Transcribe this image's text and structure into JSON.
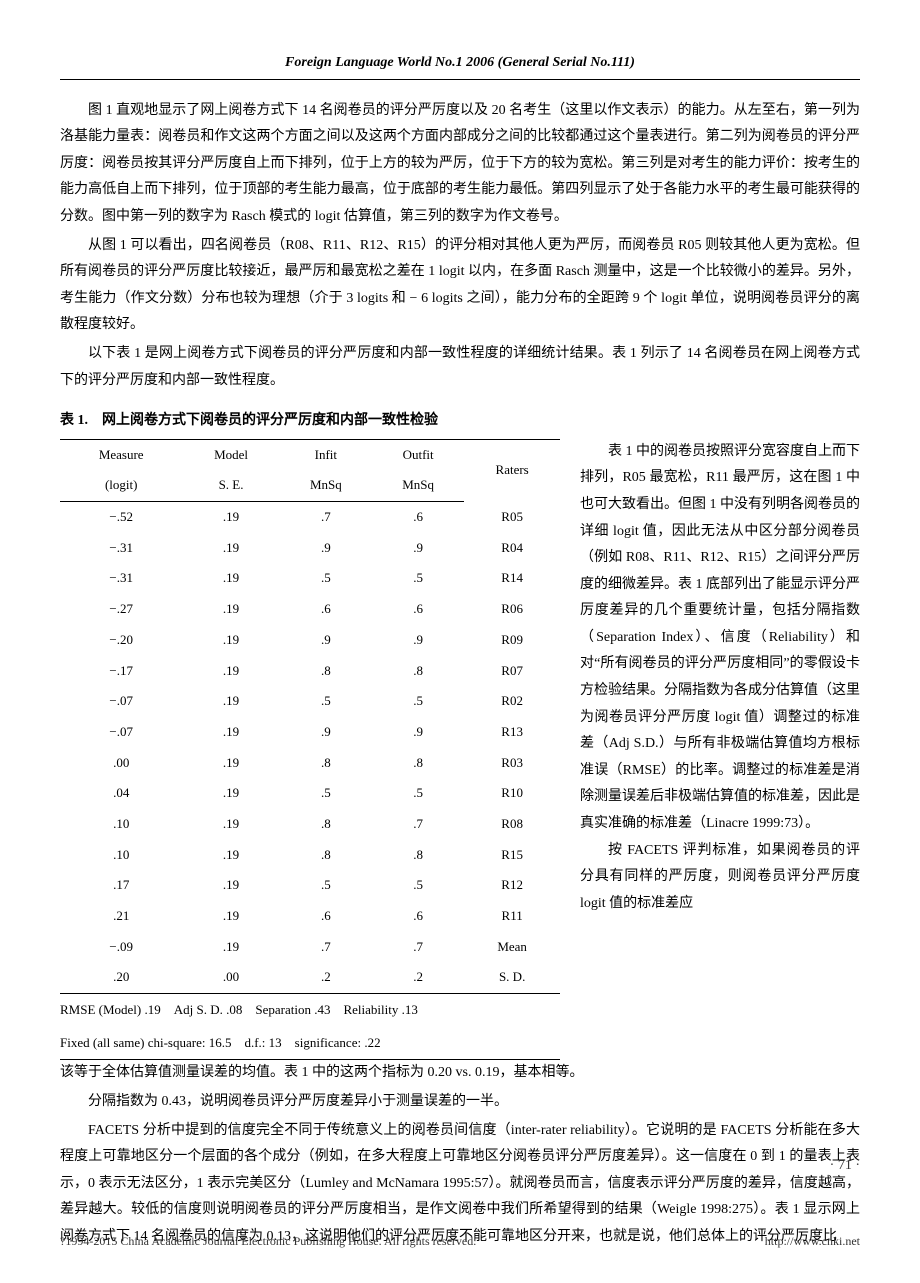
{
  "journal_header": "Foreign Language World No.1 2006 (General Serial No.111)",
  "body": {
    "p1": "图 1 直观地显示了网上阅卷方式下 14 名阅卷员的评分严厉度以及 20 名考生（这里以作文表示）的能力。从左至右，第一列为洛基能力量表：阅卷员和作文这两个方面之间以及这两个方面内部成分之间的比较都通过这个量表进行。第二列为阅卷员的评分严厉度：阅卷员按其评分严厉度自上而下排列，位于上方的较为严厉，位于下方的较为宽松。第三列是对考生的能力评价：按考生的能力高低自上而下排列，位于顶部的考生能力最高，位于底部的考生能力最低。第四列显示了处于各能力水平的考生最可能获得的分数。图中第一列的数字为 Rasch 模式的 logit 估算值，第三列的数字为作文卷号。",
    "p2": "从图 1 可以看出，四名阅卷员（R08、R11、R12、R15）的评分相对其他人更为严厉，而阅卷员 R05 则较其他人更为宽松。但所有阅卷员的评分严厉度比较接近，最严厉和最宽松之差在 1 logit 以内，在多面 Rasch 测量中，这是一个比较微小的差异。另外，考生能力（作文分数）分布也较为理想（介于 3 logits 和 − 6 logits 之间），能力分布的全距跨 9 个 logit 单位，说明阅卷员评分的离散程度较好。",
    "p3": "以下表 1 是网上阅卷方式下阅卷员的评分严厉度和内部一致性程度的详细统计结果。表 1 列示了 14 名阅卷员在网上阅卷方式下的评分严厉度和内部一致性程度。",
    "p4_right": "表 1 中的阅卷员按照评分宽容度自上而下排列，R05 最宽松，R11 最严厉，这在图 1 中也可大致看出。但图 1 中没有列明各阅卷员的详细 logit 值，因此无法从中区分部分阅卷员（例如 R08、R11、R12、R15）之间评分严厉度的细微差异。表 1 底部列出了能显示评分严厉度差异的几个重要统计量，包括分隔指数（Separation Index）、信度（Reliability）和对“所有阅卷员的评分严厉度相同”的零假设卡方检验结果。分隔指数为各成分估算值（这里为阅卷员评分严厉度 logit 值）调整过的标准差（Adj S.D.）与所有非极端估算值均方根标准误（RMSE）的比率。调整过的标准差是消除测量误差后非极端估算值的标准差，因此是真实准确的标准差（Linacre 1999:73）。",
    "p5_right": "按 FACETS 评判标准，如果阅卷员的评分具有同样的严厉度，则阅卷员评分严厉度 logit 值的标准差应",
    "p6": "该等于全体估算值测量误差的均值。表 1 中的这两个指标为 0.20 vs. 0.19，基本相等。",
    "p7": "分隔指数为 0.43，说明阅卷员评分严厉度差异小于测量误差的一半。",
    "p8": "FACETS 分析中提到的信度完全不同于传统意义上的阅卷员间信度（inter-rater reliability）。它说明的是 FACETS 分析能在多大程度上可靠地区分一个层面的各个成分（例如，在多大程度上可靠地区分阅卷员评分严厉度差异）。这一信度在 0 到 1 的量表上表示，0 表示无法区分，1 表示完美区分（Lumley and McNamara 1995:57）。就阅卷员而言，信度表示评分严厉度的差异，信度越高，差异越大。较低的信度则说明阅卷员的评分严厉度相当，是作文阅卷中我们所希望得到的结果（Weigle 1998:275）。表 1 显示网上阅卷方式下 14 名阅卷员的信度为 0.13，这说明他们的评分严厉度不能可靠地区分开来，也就是说，他们总体上的评分严厉度比"
  },
  "table": {
    "title": "表 1.　网上阅卷方式下阅卷员的评分严厉度和内部一致性检验",
    "head1": {
      "c1": "Measure",
      "c2": "Model",
      "c3": "Infit",
      "c4": "Outfit",
      "c5": "Raters"
    },
    "head2": {
      "c1": "(logit)",
      "c2": "S. E.",
      "c3": "MnSq",
      "c4": "MnSq",
      "c5": ""
    },
    "rows": [
      {
        "measure": "−.52",
        "se": ".19",
        "infit": ".7",
        "outfit": ".6",
        "rater": "R05"
      },
      {
        "measure": "−.31",
        "se": ".19",
        "infit": ".9",
        "outfit": ".9",
        "rater": "R04"
      },
      {
        "measure": "−.31",
        "se": ".19",
        "infit": ".5",
        "outfit": ".5",
        "rater": "R14"
      },
      {
        "measure": "−.27",
        "se": ".19",
        "infit": ".6",
        "outfit": ".6",
        "rater": "R06"
      },
      {
        "measure": "−.20",
        "se": ".19",
        "infit": ".9",
        "outfit": ".9",
        "rater": "R09"
      },
      {
        "measure": "−.17",
        "se": ".19",
        "infit": ".8",
        "outfit": ".8",
        "rater": "R07"
      },
      {
        "measure": "−.07",
        "se": ".19",
        "infit": ".5",
        "outfit": ".5",
        "rater": "R02"
      },
      {
        "measure": "−.07",
        "se": ".19",
        "infit": ".9",
        "outfit": ".9",
        "rater": "R13"
      },
      {
        "measure": ".00",
        "se": ".19",
        "infit": ".8",
        "outfit": ".8",
        "rater": "R03"
      },
      {
        "measure": ".04",
        "se": ".19",
        "infit": ".5",
        "outfit": ".5",
        "rater": "R10"
      },
      {
        "measure": ".10",
        "se": ".19",
        "infit": ".8",
        "outfit": ".7",
        "rater": "R08"
      },
      {
        "measure": ".10",
        "se": ".19",
        "infit": ".8",
        "outfit": ".8",
        "rater": "R15"
      },
      {
        "measure": ".17",
        "se": ".19",
        "infit": ".5",
        "outfit": ".5",
        "rater": "R12"
      },
      {
        "measure": ".21",
        "se": ".19",
        "infit": ".6",
        "outfit": ".6",
        "rater": "R11"
      },
      {
        "measure": "−.09",
        "se": ".19",
        "infit": ".7",
        "outfit": ".7",
        "rater": "Mean"
      },
      {
        "measure": ".20",
        "se": ".00",
        "infit": ".2",
        "outfit": ".2",
        "rater": "S. D."
      }
    ],
    "footer1": "RMSE (Model) .19　Adj S. D. .08　Separation .43　Reliability .13",
    "footer2": "Fixed (all same) chi-square: 16.5　d.f.: 13　significance: .22"
  },
  "page_number": "· 71 ·",
  "copyright": {
    "left": "?1994-2015 China Academic Journal Electronic Publishing House. All rights reserved.",
    "right": "http://www.cnki.net"
  }
}
